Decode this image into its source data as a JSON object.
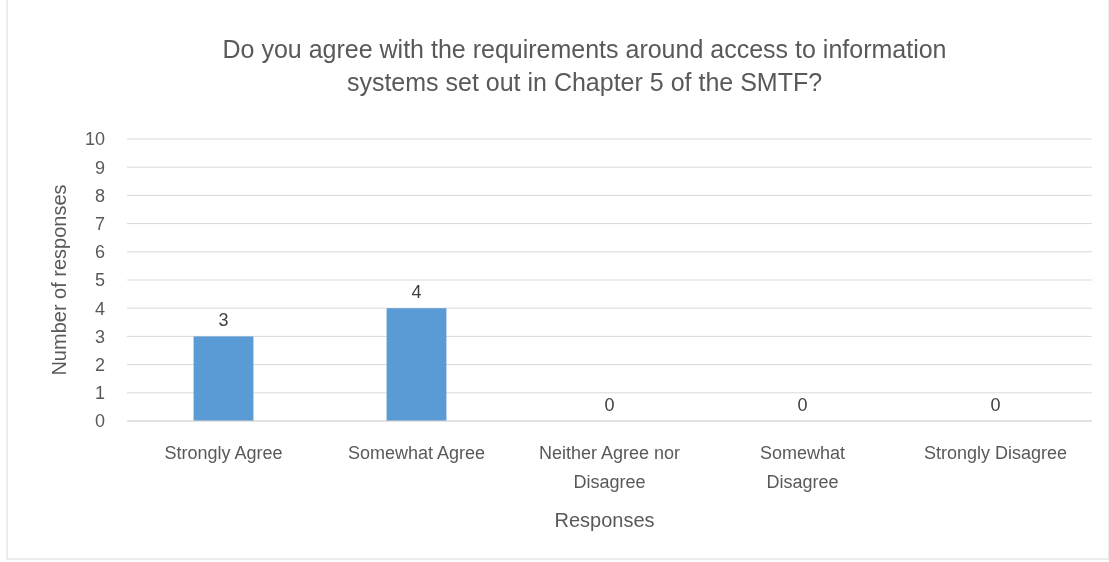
{
  "chart_data": {
    "type": "bar",
    "title": "Do you agree with the requirements around access to information systems set out in Chapter 5 of the SMTF?",
    "xlabel": "Responses",
    "ylabel": "Number of responses",
    "categories": [
      "Strongly Agree",
      "Somewhat Agree",
      "Neither Agree nor Disagree",
      "Somewhat Disagree",
      "Strongly Disagree"
    ],
    "values": [
      3,
      4,
      0,
      0,
      0
    ],
    "color": "#5b9bd5",
    "ylim": [
      0,
      10
    ],
    "yticks": [
      0,
      1,
      2,
      3,
      4,
      5,
      6,
      7,
      8,
      9,
      10
    ],
    "grid": "y",
    "data_labels": true
  }
}
